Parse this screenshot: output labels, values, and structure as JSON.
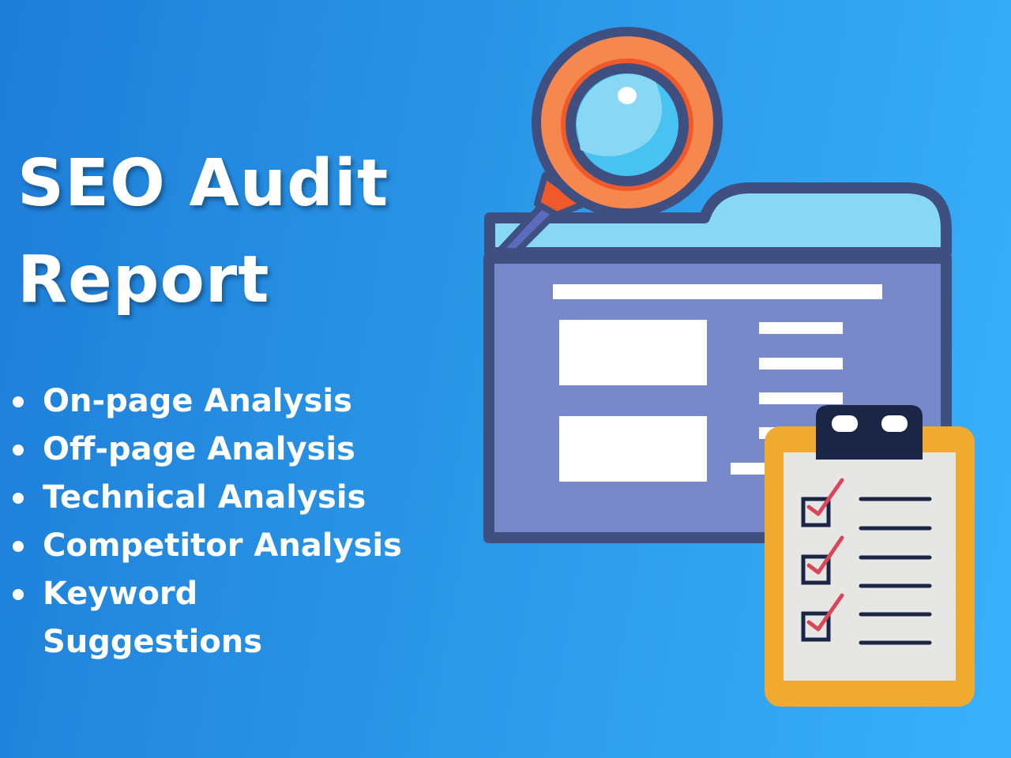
{
  "title": {
    "line1": "SEO Audit",
    "line2": "Report"
  },
  "features": [
    "On-page Analysis",
    "Off-page Analysis",
    "Technical Analysis",
    "Competitor Analysis",
    "Keyword Suggestions"
  ],
  "illustration": {
    "icons": [
      "magnifying-glass-icon",
      "folder-window-icon",
      "checklist-clipboard-icon"
    ],
    "colors": {
      "outline": "#3f5080",
      "folder_body": "#7889cb",
      "folder_tab": "#88d8f5",
      "lens_ring": "#f5874f",
      "lens": "#86d8f6",
      "clipboard": "#f0aa30",
      "paper": "#e6e6e4",
      "clip": "#1b2545",
      "check": "#d9465a"
    }
  }
}
